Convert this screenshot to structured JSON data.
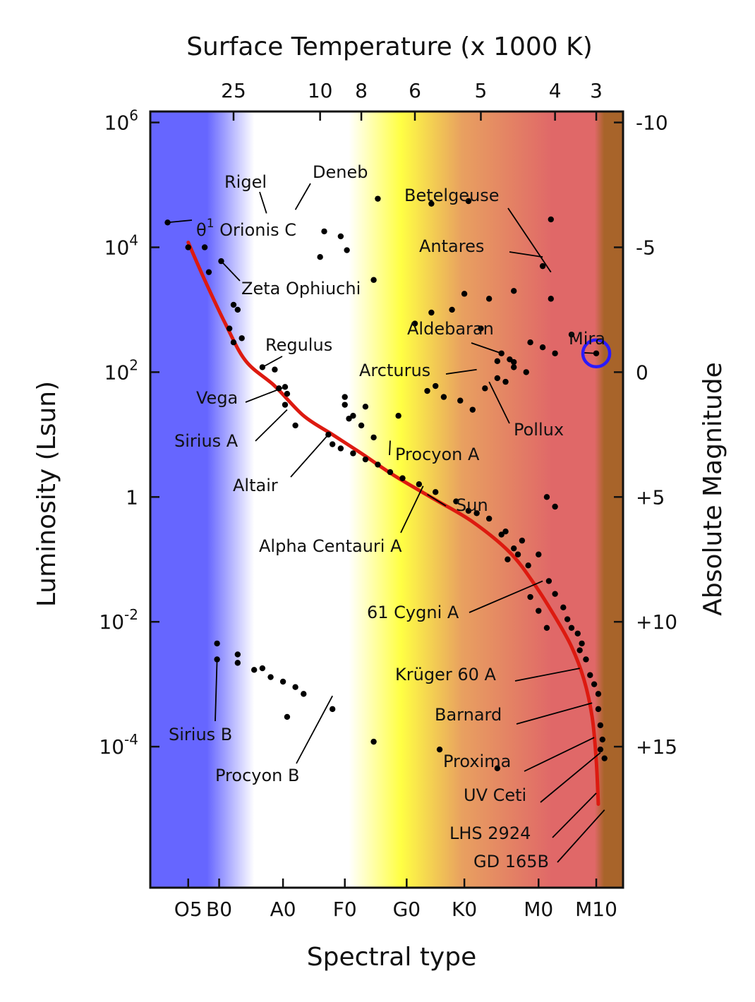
{
  "chart_data": {
    "type": "scatter",
    "title": "Surface Temperature (x 1000 K)",
    "xlabel": "Spectral type",
    "ylabel": "Luminosity (Lsun)",
    "y2label": "Absolute Magnitude",
    "y_scale": "log",
    "ylim": [
      5.5e-07,
      1500000
    ],
    "x_categories": [
      "O5",
      "B0",
      "A0",
      "F0",
      "G0",
      "K0",
      "M0",
      "M10"
    ],
    "x_category_pos": [
      0,
      0.75,
      2.3,
      3.8,
      5.3,
      6.7,
      8.5,
      9.9
    ],
    "xlim": [
      -0.92,
      10.55
    ],
    "temperature_ticks": [
      {
        "label": "25",
        "x": 1.1
      },
      {
        "label": "10",
        "x": 3.2
      },
      {
        "label": "8",
        "x": 4.2
      },
      {
        "label": "6",
        "x": 5.5
      },
      {
        "label": "5",
        "x": 7.1
      },
      {
        "label": "4",
        "x": 8.9
      },
      {
        "label": "3",
        "x": 9.9
      }
    ],
    "luminosity_ticks": [
      {
        "base": "10",
        "exp": "6",
        "value": 1000000
      },
      {
        "base": "10",
        "exp": "4",
        "value": 10000
      },
      {
        "base": "10",
        "exp": "2",
        "value": 100
      },
      {
        "base": "1",
        "exp": "",
        "value": 1
      },
      {
        "base": "10",
        "exp": "-2",
        "value": 0.01
      },
      {
        "base": "10",
        "exp": "-4",
        "value": 0.0001
      }
    ],
    "magnitude_ticks": [
      {
        "label": "-10",
        "value": 1000000
      },
      {
        "label": "-5",
        "value": 10000
      },
      {
        "label": "0",
        "value": 100
      },
      {
        "label": "+5",
        "value": 1
      },
      {
        "label": "+10",
        "value": 0.01
      },
      {
        "label": "+15",
        "value": 0.0001
      }
    ],
    "background_colors": [
      "#6666ff",
      "#ffffff",
      "#ffff44",
      "#e8a060",
      "#e06868",
      "#a8642a"
    ],
    "main_sequence_color": "#dd1a10",
    "main_sequence": [
      [
        0,
        12000
      ],
      [
        0.4,
        3000
      ],
      [
        0.9,
        600
      ],
      [
        1.4,
        150
      ],
      [
        2.1,
        60
      ],
      [
        2.8,
        20
      ],
      [
        3.5,
        10
      ],
      [
        4.2,
        5
      ],
      [
        5.0,
        2.2
      ],
      [
        6.0,
        0.9
      ],
      [
        6.9,
        0.4
      ],
      [
        7.8,
        0.13
      ],
      [
        8.4,
        0.04
      ],
      [
        8.9,
        0.012
      ],
      [
        9.3,
        0.004
      ],
      [
        9.6,
        0.0012
      ],
      [
        9.8,
        0.0003
      ],
      [
        9.9,
        6e-05
      ],
      [
        9.95,
        1.2e-05
      ]
    ],
    "points": [
      [
        -0.5,
        25000
      ],
      [
        0,
        10000
      ],
      [
        0.4,
        10000
      ],
      [
        0.5,
        4000
      ],
      [
        0.8,
        6000
      ],
      [
        1.1,
        1200
      ],
      [
        1.2,
        1000
      ],
      [
        1.0,
        500
      ],
      [
        1.1,
        300
      ],
      [
        1.3,
        350
      ],
      [
        1.8,
        120
      ],
      [
        2.1,
        110
      ],
      [
        2.2,
        55
      ],
      [
        2.35,
        58
      ],
      [
        2.4,
        45
      ],
      [
        2.35,
        30
      ],
      [
        2.6,
        14
      ],
      [
        3.4,
        10
      ],
      [
        3.5,
        7
      ],
      [
        3.7,
        6
      ],
      [
        4.0,
        5
      ],
      [
        4.3,
        4
      ],
      [
        4.6,
        3.3
      ],
      [
        4.9,
        2.5
      ],
      [
        5.2,
        2.0
      ],
      [
        5.6,
        1.6
      ],
      [
        6.0,
        1.2
      ],
      [
        6.5,
        0.85
      ],
      [
        7.0,
        0.55
      ],
      [
        7.3,
        0.45
      ],
      [
        7.7,
        0.28
      ],
      [
        8.1,
        0.2
      ],
      [
        8.5,
        0.12
      ],
      [
        8.75,
        0.045
      ],
      [
        8.9,
        0.028
      ],
      [
        9.1,
        0.017
      ],
      [
        9.2,
        0.011
      ],
      [
        9.3,
        0.008
      ],
      [
        9.45,
        0.0065
      ],
      [
        9.55,
        0.0045
      ],
      [
        9.5,
        0.0035
      ],
      [
        9.65,
        0.0025
      ],
      [
        9.75,
        0.0014
      ],
      [
        9.85,
        0.001
      ],
      [
        9.95,
        0.0007
      ],
      [
        9.95,
        0.0004
      ],
      [
        10.0,
        0.00022
      ],
      [
        10.05,
        0.00013
      ],
      [
        10.0,
        9e-05
      ],
      [
        10.1,
        6.5e-05
      ],
      [
        2.4,
        0.0003
      ],
      [
        8.7,
        1.0
      ],
      [
        8.9,
        0.7
      ],
      [
        7.75,
        0.1
      ],
      [
        7.9,
        0.15
      ],
      [
        8.0,
        0.12
      ],
      [
        8.25,
        0.08
      ],
      [
        6.8,
        0.6
      ],
      [
        7.6,
        0.25
      ],
      [
        8.3,
        0.025
      ],
      [
        8.5,
        0.015
      ],
      [
        8.7,
        0.008
      ],
      [
        4.6,
        60000
      ],
      [
        5.9,
        50000
      ],
      [
        6.8,
        55000
      ],
      [
        8.8,
        28000
      ],
      [
        3.3,
        18000
      ],
      [
        3.7,
        15000
      ],
      [
        4.5,
        3000
      ],
      [
        3.2,
        7000
      ],
      [
        5.5,
        600
      ],
      [
        5.9,
        900
      ],
      [
        6.4,
        1000
      ],
      [
        6.7,
        1800
      ],
      [
        7.3,
        1500
      ],
      [
        7.9,
        2000
      ],
      [
        8.6,
        5000
      ],
      [
        8.8,
        1500
      ],
      [
        3.85,
        9000
      ],
      [
        7.1,
        500
      ],
      [
        7.6,
        200
      ],
      [
        7.5,
        150
      ],
      [
        8.3,
        300
      ],
      [
        8.6,
        250
      ],
      [
        8.9,
        200
      ],
      [
        9.3,
        400
      ],
      [
        3.8,
        40
      ],
      [
        3.8,
        30
      ],
      [
        3.9,
        18
      ],
      [
        4.3,
        28
      ],
      [
        5.1,
        20
      ],
      [
        5.8,
        50
      ],
      [
        6.0,
        60
      ],
      [
        6.2,
        40
      ],
      [
        6.6,
        35
      ],
      [
        6.9,
        25
      ],
      [
        7.2,
        55
      ],
      [
        7.5,
        80
      ],
      [
        7.7,
        70
      ],
      [
        7.9,
        120
      ],
      [
        8.2,
        100
      ],
      [
        7.8,
        160
      ],
      [
        7.9,
        145
      ],
      [
        4.0,
        20
      ],
      [
        4.2,
        14
      ],
      [
        4.5,
        9
      ],
      [
        0.7,
        0.0045
      ],
      [
        1.2,
        0.003
      ],
      [
        0.7,
        0.0025
      ],
      [
        1.2,
        0.0022
      ],
      [
        1.6,
        0.0017
      ],
      [
        1.8,
        0.0018
      ],
      [
        2.0,
        0.0013
      ],
      [
        2.3,
        0.0011
      ],
      [
        2.6,
        0.0009
      ],
      [
        2.8,
        0.0007
      ],
      [
        3.5,
        0.0004
      ],
      [
        4.5,
        0.00012
      ],
      [
        6.1,
        9e-05
      ],
      [
        7.5,
        4.5e-05
      ]
    ],
    "highlight": {
      "label": "Mira",
      "x": 9.9,
      "y": 200,
      "color": "#2a1aff"
    },
    "annotations": [
      {
        "label": "Rigel",
        "x": 1.9,
        "y": 35000
      },
      {
        "label": "Deneb",
        "x": 2.6,
        "y": 40000
      },
      {
        "label": "θ",
        "sup": "1",
        "rest": " Orionis C",
        "x": -0.5,
        "y": 25000
      },
      {
        "label": "Betelgeuse",
        "x": 8.8,
        "y": 4000
      },
      {
        "label": "Antares",
        "x": 8.6,
        "y": 7000
      },
      {
        "label": "Zeta Ophiuchi",
        "x": 0.8,
        "y": 6000
      },
      {
        "label": "Aldebaran",
        "x": 7.6,
        "y": 200
      },
      {
        "label": "Regulus",
        "x": 1.8,
        "y": 120
      },
      {
        "label": "Arcturus",
        "x": 7.0,
        "y": 110
      },
      {
        "label": "Vega",
        "x": 2.35,
        "y": 58
      },
      {
        "label": "Pollux",
        "x": 7.3,
        "y": 70
      },
      {
        "label": "Sirius A",
        "x": 2.4,
        "y": 25
      },
      {
        "label": "Procyon A",
        "x": 4.9,
        "y": 8
      },
      {
        "label": "Altair",
        "x": 3.4,
        "y": 10
      },
      {
        "label": "Sun",
        "x": 5.8,
        "y": 1.1
      },
      {
        "label": "Alpha Centauri A",
        "x": 5.7,
        "y": 1.5
      },
      {
        "label": "61 Cygni A",
        "x": 8.6,
        "y": 0.045
      },
      {
        "label": "Krüger 60 A",
        "x": 9.5,
        "y": 0.0018
      },
      {
        "label": "Barnard",
        "x": 9.8,
        "y": 0.0005
      },
      {
        "label": "Proxima",
        "x": 9.85,
        "y": 0.00014
      },
      {
        "label": "UV Ceti",
        "x": 10.0,
        "y": 8e-05
      },
      {
        "label": "LHS 2924",
        "x": 9.9,
        "y": 1.8e-05
      },
      {
        "label": "GD 165B",
        "x": 10.1,
        "y": 9.7e-06
      },
      {
        "label": "Sirius B",
        "x": 0.7,
        "y": 0.0025
      },
      {
        "label": "Procyon B",
        "x": 3.5,
        "y": 0.00065
      }
    ]
  }
}
